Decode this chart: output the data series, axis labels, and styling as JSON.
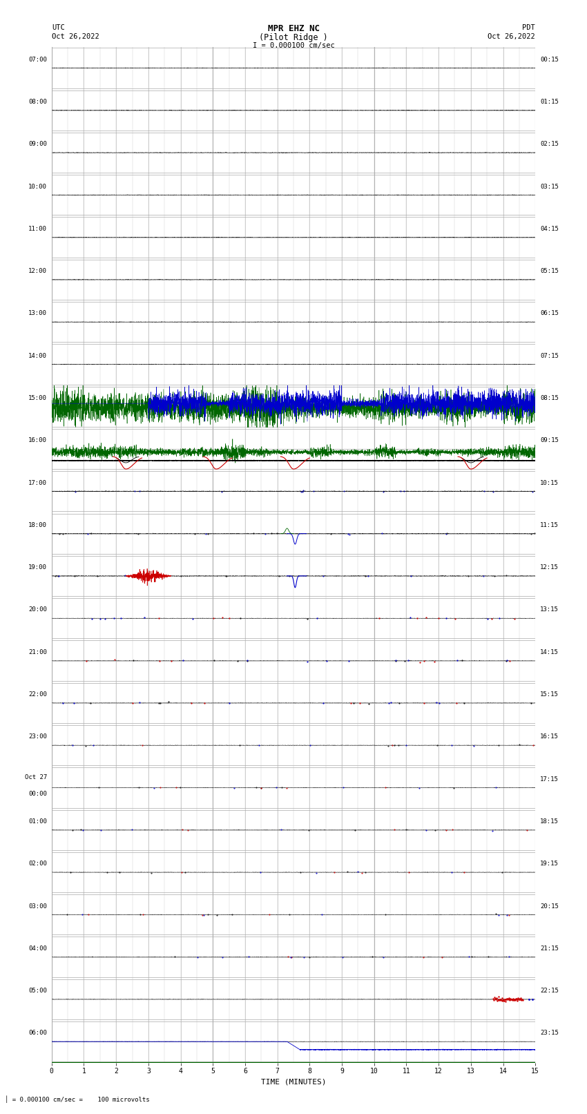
{
  "title_line1": "MPR EHZ NC",
  "title_line2": "(Pilot Ridge )",
  "title_line3": "I = 0.000100 cm/sec",
  "left_label_top": "UTC",
  "left_label_date": "Oct 26,2022",
  "right_label_top": "PDT",
  "right_label_date": "Oct 26,2022",
  "bottom_label": "TIME (MINUTES)",
  "bottom_note": "= 0.000100 cm/sec =    100 microvolts",
  "utc_labels": [
    "07:00",
    "08:00",
    "09:00",
    "10:00",
    "11:00",
    "12:00",
    "13:00",
    "14:00",
    "15:00",
    "16:00",
    "17:00",
    "18:00",
    "19:00",
    "20:00",
    "21:00",
    "22:00",
    "23:00",
    "Oct 27\n00:00",
    "01:00",
    "02:00",
    "03:00",
    "04:00",
    "05:00",
    "06:00"
  ],
  "pdt_labels": [
    "00:15",
    "01:15",
    "02:15",
    "03:15",
    "04:15",
    "05:15",
    "06:15",
    "07:15",
    "08:15",
    "09:15",
    "10:15",
    "11:15",
    "12:15",
    "13:15",
    "14:15",
    "15:15",
    "16:15",
    "17:15",
    "18:15",
    "19:15",
    "20:15",
    "21:15",
    "22:15",
    "23:15"
  ],
  "n_rows": 24,
  "bg_color": "#ffffff",
  "grid_color": "#aaaaaa",
  "minor_grid_color": "#cccccc",
  "black": "#000000",
  "blue": "#0000cc",
  "green": "#006600",
  "red": "#cc0000"
}
